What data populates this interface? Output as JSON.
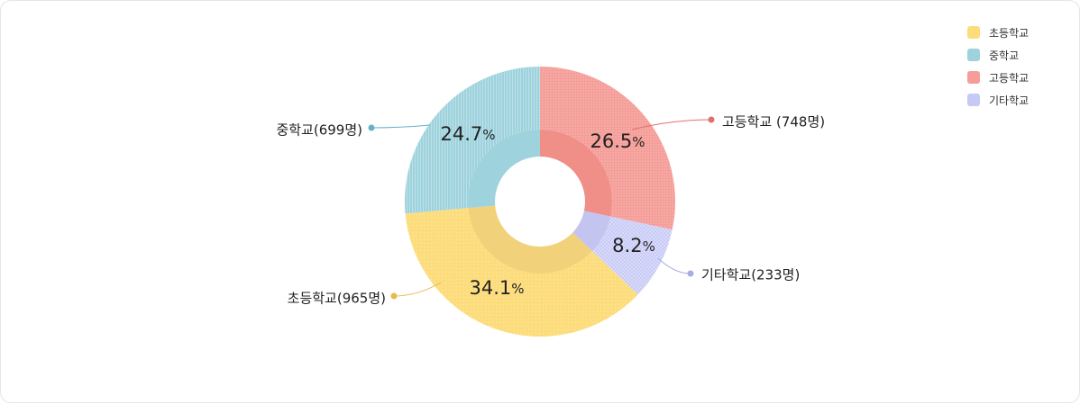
{
  "chart_data": {
    "type": "pie",
    "style": "donut",
    "slices": [
      {
        "name": "고등학교",
        "callout": "고등학교 (748명)",
        "count": 748,
        "percent": "26.5",
        "value": 26.5,
        "color": "#f59d98"
      },
      {
        "name": "기타학교",
        "callout": "기타학교(233명)",
        "count": 233,
        "percent": "8.2",
        "value": 8.2,
        "color": "#c6c9f6"
      },
      {
        "name": "초등학교",
        "callout": "초등학교(965명)",
        "count": 965,
        "percent": "34.1",
        "value": 34.1,
        "color": "#fcdc7b"
      },
      {
        "name": "중학교",
        "callout": "중학교(699명)",
        "count": 699,
        "percent": "24.7",
        "value": 24.7,
        "color": "#9ed2dd"
      }
    ],
    "percent_unit": "%",
    "legend_order": [
      "초등학교",
      "중학교",
      "고등학교",
      "기타학교"
    ],
    "legend_position": "top-right"
  },
  "colors": {
    "inner": {
      "고등학교": "#f08f88",
      "기타학교": "#c3c4ef",
      "초등학교": "#f1d27b",
      "중학교": "#9ed2dd"
    },
    "leader_dot": {
      "고등학교": "#e0706a",
      "기타학교": "#a9acdf",
      "초등학교": "#e6bb4c",
      "중학교": "#62b5c5"
    }
  },
  "legend": {
    "items": [
      {
        "label": "초등학교",
        "color": "#fcdc7b"
      },
      {
        "label": "중학교",
        "color": "#9ed2dd"
      },
      {
        "label": "고등학교",
        "color": "#f59d98"
      },
      {
        "label": "기타학교",
        "color": "#c6c9f6"
      }
    ]
  }
}
